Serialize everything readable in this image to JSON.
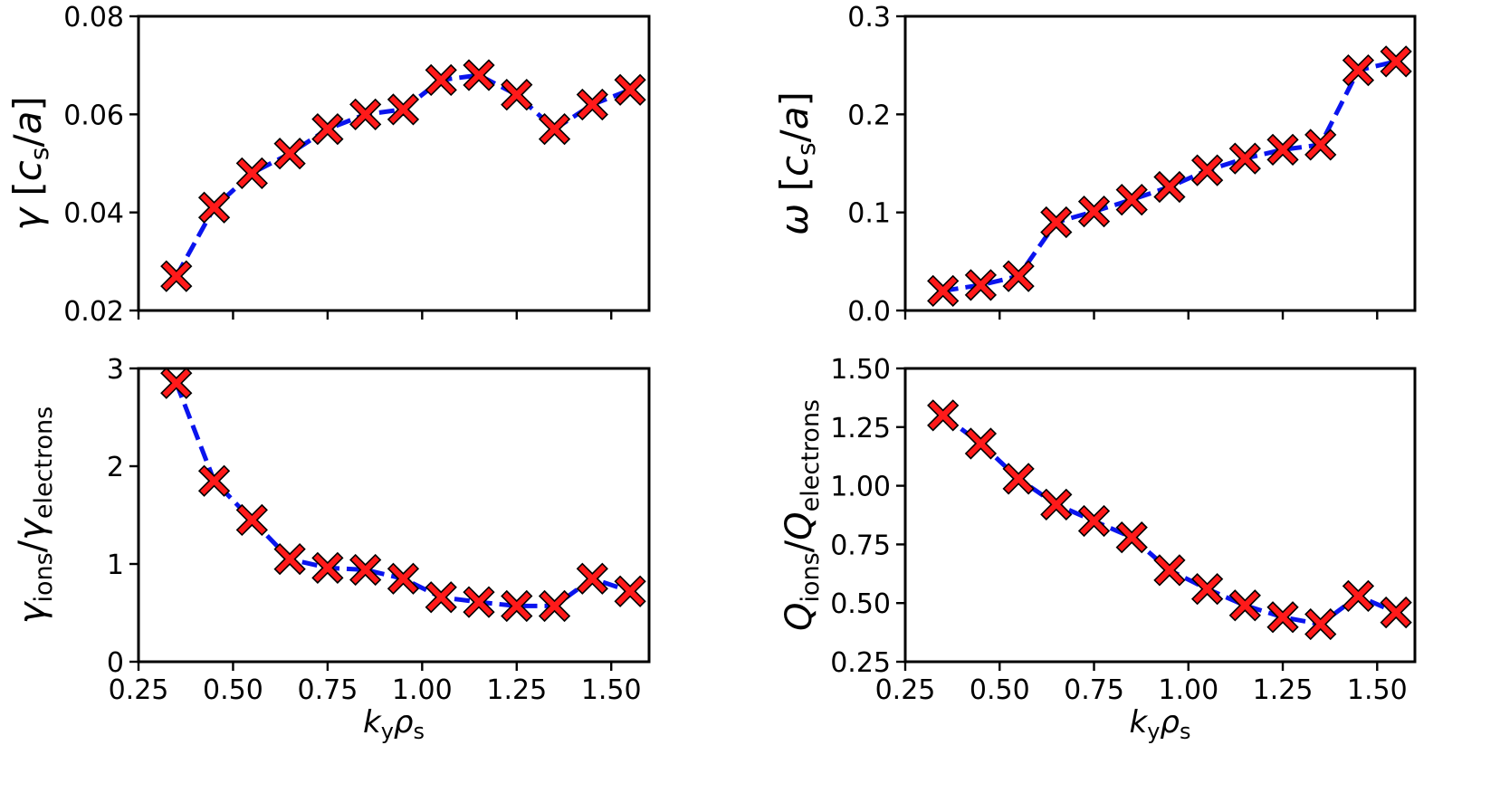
{
  "chart_data": [
    {
      "type": "line",
      "panel": "top-left",
      "ylabel": {
        "main": "γ",
        "bracket": "[",
        "c": "c",
        "c_sub": "s",
        "slash": "/a",
        "close": "]"
      },
      "xlabel": null,
      "ylim": [
        0.02,
        0.08
      ],
      "xlim": [
        0.25,
        1.6
      ],
      "xticks": [
        0.25,
        0.5,
        0.75,
        1.0,
        1.25,
        1.5
      ],
      "xtick_labels_visible": false,
      "yticks": [
        0.02,
        0.04,
        0.06,
        0.08
      ],
      "ytick_labels": [
        "0.02",
        "0.04",
        "0.06",
        "0.08"
      ],
      "x": [
        0.35,
        0.45,
        0.55,
        0.65,
        0.75,
        0.85,
        0.95,
        1.05,
        1.15,
        1.25,
        1.35,
        1.45,
        1.55
      ],
      "y": [
        0.027,
        0.041,
        0.048,
        0.052,
        0.057,
        0.06,
        0.061,
        0.067,
        0.068,
        0.064,
        0.057,
        0.062,
        0.065
      ],
      "line": {
        "color": "#0000ee",
        "style": "dashed"
      },
      "marker": {
        "shape": "X",
        "color": "#ff0000",
        "edge": "#000000"
      }
    },
    {
      "type": "line",
      "panel": "top-right",
      "ylabel": {
        "main": "ω",
        "bracket": "[",
        "c": "c",
        "c_sub": "s",
        "slash": "/a",
        "close": "]"
      },
      "xlabel": null,
      "ylim": [
        0.0,
        0.3
      ],
      "xlim": [
        0.25,
        1.6
      ],
      "xticks": [
        0.25,
        0.5,
        0.75,
        1.0,
        1.25,
        1.5
      ],
      "xtick_labels_visible": false,
      "yticks": [
        0.0,
        0.1,
        0.2,
        0.3
      ],
      "ytick_labels": [
        "0.0",
        "0.1",
        "0.2",
        "0.3"
      ],
      "x": [
        0.35,
        0.45,
        0.55,
        0.65,
        0.75,
        0.85,
        0.95,
        1.05,
        1.15,
        1.25,
        1.35,
        1.45,
        1.55
      ],
      "y": [
        0.02,
        0.026,
        0.035,
        0.09,
        0.101,
        0.113,
        0.126,
        0.143,
        0.155,
        0.164,
        0.169,
        0.245,
        0.254
      ],
      "line": {
        "color": "#0000ee",
        "style": "dashed"
      },
      "marker": {
        "shape": "X",
        "color": "#ff0000",
        "edge": "#000000"
      }
    },
    {
      "type": "line",
      "panel": "bottom-left",
      "ylabel": {
        "main": "γ",
        "sub1": "ions",
        "slash": "/",
        "main2": "γ",
        "sub2": "electrons"
      },
      "xlabel": {
        "k": "k",
        "k_sub": "y",
        "rho": "ρ",
        "rho_sub": "s"
      },
      "ylim": [
        0,
        3
      ],
      "xlim": [
        0.25,
        1.6
      ],
      "xticks": [
        0.25,
        0.5,
        0.75,
        1.0,
        1.25,
        1.5
      ],
      "xtick_labels": [
        "0.25",
        "0.50",
        "0.75",
        "1.00",
        "1.25",
        "1.50"
      ],
      "xtick_labels_visible": true,
      "yticks": [
        0,
        1,
        2,
        3
      ],
      "ytick_labels": [
        "0",
        "1",
        "2",
        "3"
      ],
      "x": [
        0.35,
        0.45,
        0.55,
        0.65,
        0.75,
        0.85,
        0.95,
        1.05,
        1.15,
        1.25,
        1.35,
        1.45,
        1.55
      ],
      "y": [
        2.85,
        1.85,
        1.45,
        1.05,
        0.96,
        0.94,
        0.85,
        0.66,
        0.61,
        0.57,
        0.57,
        0.85,
        0.72
      ],
      "line": {
        "color": "#0000ee",
        "style": "dashed"
      },
      "marker": {
        "shape": "X",
        "color": "#ff0000",
        "edge": "#000000"
      }
    },
    {
      "type": "line",
      "panel": "bottom-right",
      "ylabel": {
        "main": "Q",
        "sub1": "ions",
        "slash": "/",
        "main2": "Q",
        "sub2": "electrons"
      },
      "xlabel": {
        "k": "k",
        "k_sub": "y",
        "rho": "ρ",
        "rho_sub": "s"
      },
      "ylim": [
        0.25,
        1.5
      ],
      "xlim": [
        0.25,
        1.6
      ],
      "xticks": [
        0.25,
        0.5,
        0.75,
        1.0,
        1.25,
        1.5
      ],
      "xtick_labels": [
        "0.25",
        "0.50",
        "0.75",
        "1.00",
        "1.25",
        "1.50"
      ],
      "xtick_labels_visible": true,
      "yticks": [
        0.25,
        0.5,
        0.75,
        1.0,
        1.25,
        1.5
      ],
      "ytick_labels": [
        "0.25",
        "0.50",
        "0.75",
        "1.00",
        "1.25",
        "1.50"
      ],
      "x": [
        0.35,
        0.45,
        0.55,
        0.65,
        0.75,
        0.85,
        0.95,
        1.05,
        1.15,
        1.25,
        1.35,
        1.45,
        1.55
      ],
      "y": [
        1.3,
        1.18,
        1.03,
        0.92,
        0.85,
        0.78,
        0.64,
        0.56,
        0.49,
        0.44,
        0.41,
        0.53,
        0.46
      ],
      "line": {
        "color": "#0000ee",
        "style": "dashed"
      },
      "marker": {
        "shape": "X",
        "color": "#ff0000",
        "edge": "#000000"
      }
    }
  ]
}
